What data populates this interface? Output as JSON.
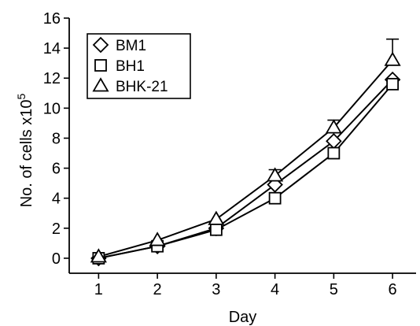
{
  "chart_data": {
    "type": "line",
    "xlabel": "Day",
    "ylabel_main": "No. of cells x10",
    "ylabel_sup": "5",
    "x": [
      1,
      2,
      3,
      4,
      5,
      6
    ],
    "xlim": [
      0.5,
      6.4
    ],
    "ylim": [
      -1,
      16
    ],
    "xticks": [
      "1",
      "2",
      "3",
      "4",
      "5",
      "6"
    ],
    "yticks": [
      "0",
      "2",
      "4",
      "6",
      "8",
      "10",
      "12",
      "14",
      "16"
    ],
    "grid": false,
    "legend_position": "top-left",
    "series": [
      {
        "name": "BM1",
        "marker": "diamond",
        "values": [
          0.0,
          0.8,
          2.0,
          4.9,
          7.8,
          11.9
        ],
        "err_upper": [
          0,
          0,
          0,
          0,
          0,
          0
        ]
      },
      {
        "name": "BH1",
        "marker": "square",
        "values": [
          0.0,
          0.8,
          1.9,
          4.0,
          7.0,
          11.6
        ],
        "err_upper": [
          0,
          0,
          0,
          0,
          0,
          0
        ]
      },
      {
        "name": "BHK-21",
        "marker": "triangle",
        "values": [
          0.1,
          1.2,
          2.6,
          5.5,
          8.7,
          13.2
        ],
        "err_upper": [
          0,
          0,
          0,
          0.4,
          0.5,
          1.4
        ]
      }
    ],
    "colors": {
      "line": "#000000",
      "marker_fill": "#ffffff"
    }
  }
}
